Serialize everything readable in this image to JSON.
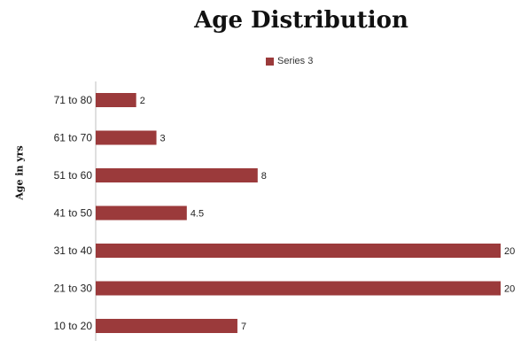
{
  "chart_data": {
    "type": "bar",
    "orientation": "horizontal",
    "title": "Age Distribution",
    "xlabel": "",
    "ylabel": "Age in yrs",
    "categories": [
      "10 to 20",
      "21 to 30",
      "31 to 40",
      "41 to 50",
      "51 to 60",
      "61 to 70",
      "71 to 80"
    ],
    "series": [
      {
        "name": "Series 3",
        "values": [
          7,
          20,
          20,
          4.5,
          8,
          3,
          2
        ],
        "color": "#9b3a3b"
      }
    ],
    "xlim": [
      0,
      20
    ],
    "grid": false,
    "legend": "top"
  }
}
